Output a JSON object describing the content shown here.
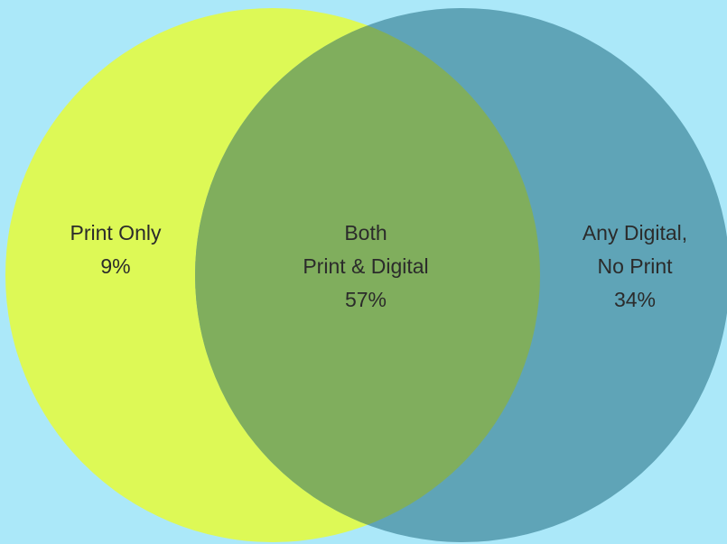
{
  "colors": {
    "background": "#abe8f9",
    "left_circle": "#ddf956",
    "right_circle": "#5fa4b7",
    "overlap": "#80ae5d",
    "text": "#2b2b2b"
  },
  "venn": {
    "left": {
      "line1": "Print Only",
      "value": "9%"
    },
    "center": {
      "line1": "Both",
      "line2": "Print & Digital",
      "value": "57%"
    },
    "right": {
      "line1": "Any Digital,",
      "line2": "No Print",
      "value": "34%"
    }
  }
}
